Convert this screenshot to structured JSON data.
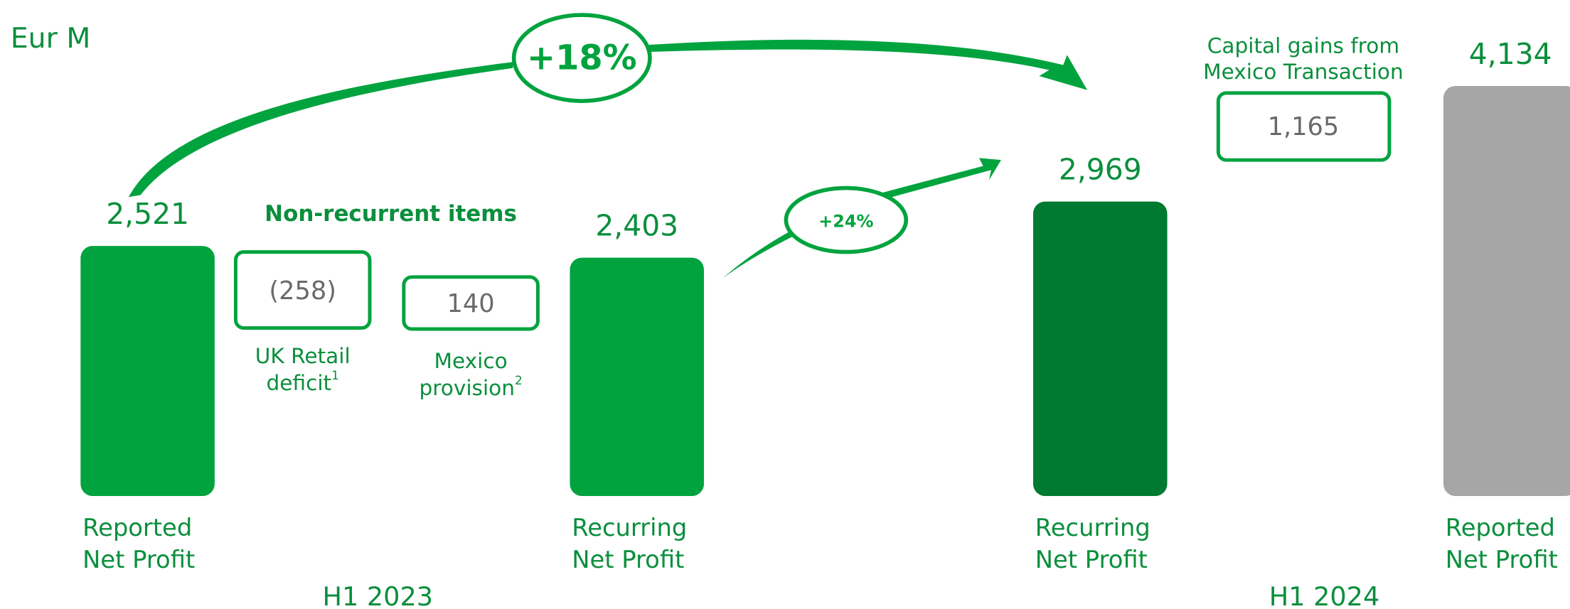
{
  "chart_data": {
    "type": "bar",
    "unit": "Eur M",
    "categories": [
      [
        "Reported",
        "Net Profit"
      ],
      [
        "Recurring",
        "Net Profit"
      ],
      [
        "Recurring",
        "Net Profit"
      ],
      [
        "Reported",
        "Net Profit"
      ]
    ],
    "values": [
      2521,
      2403,
      2969,
      4134
    ],
    "value_labels": [
      "2,521",
      "2,403",
      "2,969",
      "4,134"
    ],
    "colors": [
      "#00a33e",
      "#00a33e",
      "#007a30",
      "#a6a6a6"
    ],
    "groups": [
      "H1 2023",
      "H1 2024"
    ],
    "non_recurrent": {
      "title": "Non-recurrent items",
      "items": [
        {
          "label": [
            "UK Retail",
            "deficit"
          ],
          "note": "1",
          "value": -258,
          "value_label": "(258)"
        },
        {
          "label": [
            "Mexico",
            "provision"
          ],
          "note": "2",
          "value": 140
        }
      ]
    },
    "capital_gains": {
      "label": [
        "Capital gains from",
        "Mexico Transaction"
      ],
      "value": 1165,
      "value_label": "1,165"
    },
    "growth": [
      {
        "value": 18,
        "label": "+18%"
      },
      {
        "value": 24,
        "label": "+24%"
      }
    ]
  }
}
